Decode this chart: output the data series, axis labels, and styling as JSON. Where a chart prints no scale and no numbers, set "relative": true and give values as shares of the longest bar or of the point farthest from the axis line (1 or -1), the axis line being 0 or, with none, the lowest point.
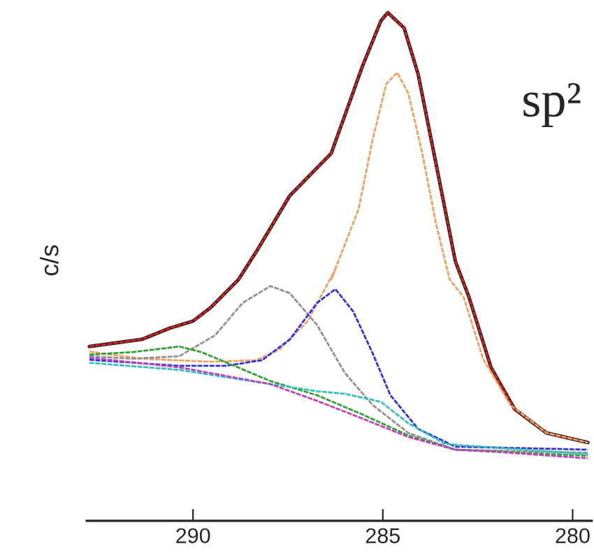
{
  "chart_data": {
    "type": "line",
    "relative": true,
    "ylabel": "c/s",
    "annotations": [
      "sp²"
    ],
    "xlim": [
      292.8,
      279.5
    ],
    "xticks": [
      290,
      285,
      280
    ],
    "grid": false,
    "legend": false,
    "marker": "none",
    "series": [
      {
        "color": "#222222",
        "line_style": "solid",
        "x": [
          292.73,
          291.35,
          290.62,
          290,
          289.53,
          288.8,
          288.33,
          287.45,
          286.36,
          285.53,
          285.05,
          284.87,
          284.44,
          284.07,
          283.6,
          283.09,
          282.73,
          282.15,
          281.53,
          280.69,
          279.6
        ],
        "values": [
          0.343,
          0.357,
          0.379,
          0.393,
          0.42,
          0.475,
          0.53,
          0.64,
          0.723,
          0.896,
          0.984,
          1.0,
          0.97,
          0.879,
          0.703,
          0.511,
          0.44,
          0.302,
          0.22,
          0.173,
          0.154
        ]
      },
      {
        "color": "#e02020",
        "line_style": "dashed",
        "x": [
          292.73,
          291.35,
          290.62,
          290,
          289.53,
          288.8,
          288.33,
          287.45,
          286.36,
          285.53,
          285.05,
          284.87,
          284.44,
          284.07,
          283.6,
          283.09,
          282.73,
          282.15,
          281.53,
          280.69,
          279.6
        ],
        "values": [
          0.343,
          0.357,
          0.379,
          0.393,
          0.42,
          0.475,
          0.53,
          0.64,
          0.723,
          0.896,
          0.984,
          1.0,
          0.97,
          0.879,
          0.703,
          0.511,
          0.44,
          0.302,
          0.22,
          0.173,
          0.154
        ]
      },
      {
        "color": "#f0a060",
        "line_style": "dashed",
        "x": [
          292.73,
          291.35,
          289.53,
          288.33,
          287.71,
          286.98,
          286.25,
          286.36,
          285.64,
          285.27,
          284.91,
          284.62,
          284.33,
          283.96,
          283.6,
          283.24,
          282.87,
          282.36,
          281.64,
          280.69,
          279.6
        ],
        "values": [
          0.333,
          0.319,
          0.313,
          0.316,
          0.338,
          0.393,
          0.495,
          0.475,
          0.613,
          0.75,
          0.86,
          0.882,
          0.841,
          0.723,
          0.585,
          0.475,
          0.44,
          0.319,
          0.228,
          0.173,
          0.154
        ]
      },
      {
        "color": "#909090",
        "line_style": "dashed",
        "x": [
          292.73,
          291.6,
          290.36,
          289.42,
          288.69,
          287.96,
          287.45,
          286.73,
          286,
          285.27,
          284.33,
          283.09,
          279.6
        ],
        "values": [
          0.324,
          0.319,
          0.324,
          0.365,
          0.429,
          0.462,
          0.448,
          0.385,
          0.291,
          0.228,
          0.173,
          0.14,
          0.134
        ]
      },
      {
        "color": "#3030e0",
        "line_style": "dashed",
        "x": [
          292.73,
          290.36,
          289.16,
          288.18,
          287.45,
          286.73,
          286.25,
          285.78,
          285.27,
          284.8,
          284.07,
          283.09,
          279.6
        ],
        "values": [
          0.317,
          0.305,
          0.305,
          0.316,
          0.357,
          0.429,
          0.456,
          0.412,
          0.33,
          0.247,
          0.181,
          0.146,
          0.14
        ]
      },
      {
        "color": "#30a030",
        "line_style": "dashed",
        "x": [
          292.73,
          291.6,
          290.36,
          289.78,
          288.91,
          287.96,
          286.73,
          285.53,
          284.33,
          283.09,
          279.6
        ],
        "values": [
          0.327,
          0.332,
          0.343,
          0.332,
          0.305,
          0.275,
          0.247,
          0.209,
          0.168,
          0.14,
          0.128
        ]
      },
      {
        "color": "#30c0c0",
        "line_style": "dashed",
        "x": [
          292.73,
          290.36,
          287.96,
          286.73,
          286,
          285.05,
          284.33,
          283.35,
          279.6
        ],
        "values": [
          0.311,
          0.297,
          0.269,
          0.255,
          0.25,
          0.234,
          0.192,
          0.151,
          0.131
        ]
      },
      {
        "color": "#c040c0",
        "line_style": "dashed",
        "x": [
          292.73,
          290.36,
          287.96,
          286.73,
          285.53,
          284.33,
          283.09,
          281.89,
          279.6
        ],
        "values": [
          0.321,
          0.302,
          0.269,
          0.236,
          0.201,
          0.165,
          0.14,
          0.135,
          0.123
        ]
      }
    ]
  }
}
